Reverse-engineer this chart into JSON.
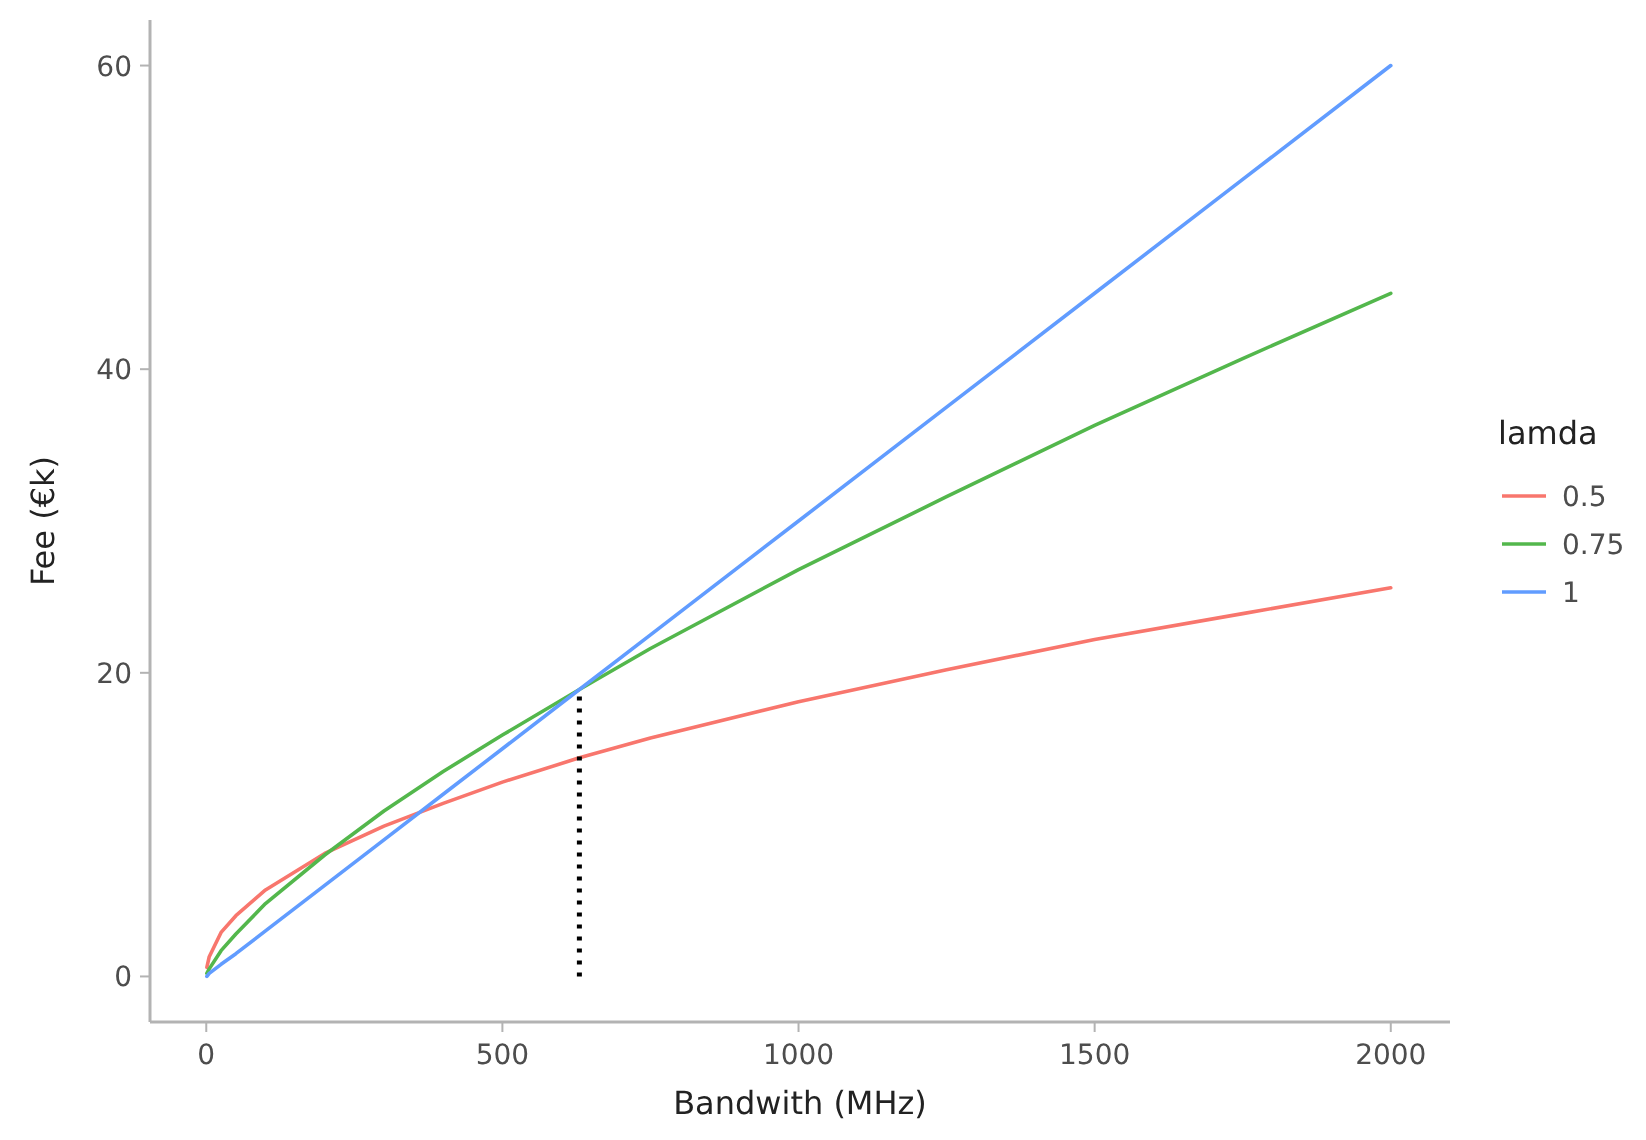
{
  "chart_data": {
    "type": "line",
    "xlabel": "Bandwith (MHz)",
    "ylabel": "Fee (€k)",
    "legend_title": "lamda",
    "legend": "right",
    "grid": false,
    "marker": "none",
    "xlim": [
      -95,
      2100
    ],
    "xticks": [
      0,
      500,
      1000,
      1500,
      2000
    ],
    "ylim": [
      -3,
      63
    ],
    "yticks": [
      0,
      20,
      40,
      60
    ],
    "series": [
      {
        "name": "0.5",
        "color": "#f8766d",
        "x": [
          1,
          5,
          25,
          50,
          100,
          200,
          300,
          400,
          500,
          630,
          750,
          1000,
          1250,
          1500,
          1750,
          2000
        ],
        "values": [
          0.6,
          1.3,
          2.9,
          4.0,
          5.7,
          8.1,
          9.9,
          11.4,
          12.8,
          14.4,
          15.7,
          18.1,
          20.2,
          22.2,
          23.9,
          25.6
        ]
      },
      {
        "name": "0.75",
        "color": "#53b74c",
        "x": [
          1,
          5,
          25,
          50,
          100,
          200,
          300,
          400,
          500,
          630,
          750,
          1000,
          1250,
          1500,
          1750,
          2000
        ],
        "values": [
          0.2,
          0.5,
          1.7,
          2.8,
          4.8,
          8.0,
          10.9,
          13.5,
          15.9,
          18.9,
          21.6,
          26.8,
          31.6,
          36.3,
          40.7,
          45.0
        ]
      },
      {
        "name": "1",
        "color": "#619cff",
        "x": [
          1,
          5,
          25,
          50,
          100,
          200,
          300,
          400,
          500,
          630,
          750,
          1000,
          1250,
          1500,
          1750,
          2000
        ],
        "values": [
          0.0,
          0.2,
          0.8,
          1.5,
          3,
          6,
          9,
          12,
          15,
          18.9,
          22.5,
          30,
          37.5,
          45,
          52.5,
          60
        ]
      },
      {
        "color": "#000000",
        "line_style": "dotted",
        "x": [
          630,
          630
        ],
        "values": [
          0,
          18.9
        ]
      }
    ]
  }
}
